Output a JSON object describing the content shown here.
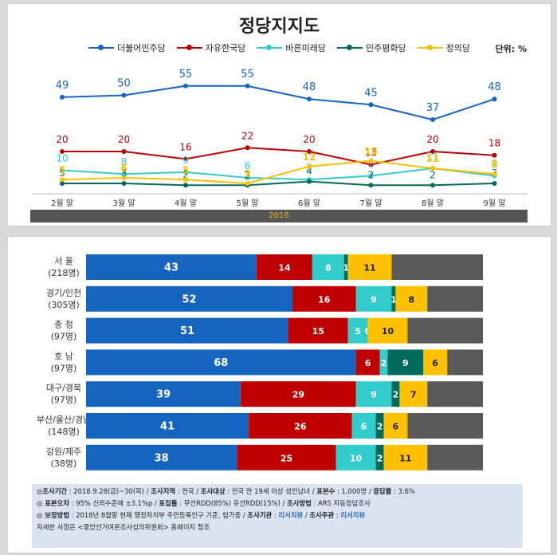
{
  "title": "정당지지도",
  "unit": "단위: %",
  "year_label": "2018",
  "colors": {
    "minju": "#1565c0",
    "jayu": "#c00000",
    "bareun": "#33cccc",
    "pyeonghwa": "#006b5c",
    "jeongui": "#ffc000",
    "other": "#595959"
  },
  "chart_data": [
    {
      "type": "line",
      "title": "정당지지도",
      "x": [
        "2월 말",
        "3월 말",
        "4월 말",
        "5월 말",
        "6월 말",
        "7월 말",
        "8월 말",
        "9월 말"
      ],
      "ylim": [
        0,
        60
      ],
      "legend_position": "top",
      "series": [
        {
          "name": "더불어민주당",
          "color": "#1565c0",
          "values": [
            49,
            50,
            55,
            55,
            48,
            45,
            37,
            48
          ]
        },
        {
          "name": "자유한국당",
          "color": "#c00000",
          "values": [
            20,
            20,
            16,
            22,
            20,
            13,
            20,
            18
          ]
        },
        {
          "name": "바른미래당",
          "color": "#33cccc",
          "values": [
            10,
            8,
            9,
            6,
            5,
            7,
            11,
            7
          ]
        },
        {
          "name": "민주평화당",
          "color": "#006b5c",
          "values": [
            3,
            3,
            2,
            2,
            4,
            2,
            2,
            3
          ]
        },
        {
          "name": "정의당",
          "color": "#ffc000",
          "values": [
            5,
            6,
            5,
            3,
            12,
            15,
            11,
            8
          ]
        }
      ]
    },
    {
      "type": "bar",
      "orientation": "horizontal-stacked",
      "xlim": [
        0,
        100
      ],
      "categories": [
        {
          "name": "서 울",
          "n": "(218명)"
        },
        {
          "name": "경기/인천",
          "n": "(305명)"
        },
        {
          "name": "충 청",
          "n": "(97명)"
        },
        {
          "name": "호 남",
          "n": "(97명)"
        },
        {
          "name": "대구/경북",
          "n": "(97명)"
        },
        {
          "name": "부산/울산/경남",
          "n": "(148명)"
        },
        {
          "name": "강원/제주",
          "n": "(38명)"
        }
      ],
      "series": [
        {
          "name": "더불어민주당",
          "color": "#1565c0",
          "values": [
            43,
            52,
            51,
            68,
            39,
            41,
            38
          ]
        },
        {
          "name": "자유한국당",
          "color": "#c00000",
          "values": [
            14,
            16,
            15,
            6,
            29,
            26,
            25
          ]
        },
        {
          "name": "바른미래당",
          "color": "#33cccc",
          "values": [
            8,
            9,
            5,
            2,
            9,
            6,
            10
          ]
        },
        {
          "name": "민주평화당",
          "color": "#006b5c",
          "values": [
            1,
            1,
            0,
            9,
            2,
            2,
            2
          ]
        },
        {
          "name": "정의당",
          "color": "#ffc000",
          "values": [
            11,
            8,
            10,
            6,
            7,
            6,
            11
          ]
        }
      ]
    }
  ],
  "notes": {
    "line1": {
      "k1": "◎조사기간",
      "v1": " : 2018.9.28(금)~30(목) / ",
      "k2": "조사지역",
      "v2": " : 전국 / ",
      "k3": "조사대상",
      "v3": " : 전국 만 19세 이상 성인남녀 / ",
      "k4": "표본수",
      "v4": " : 1,000명 / ",
      "k5": "응답률",
      "v5": " : 3.6%"
    },
    "line2": {
      "k1": "◎ 표본오차",
      "v1": " : 95% 신뢰수준에 ±3.1%p / ",
      "k2": "표집틀",
      "v2": " : 무선RDD(85%) 유선RDD(15%) / ",
      "k3": "조사방법",
      "v3": " : ARS 자동응답조사"
    },
    "line3": {
      "k1": "◎ 보정방법",
      "v1": " : 2018년 8월말 현재 행정자치부 주민등록인구 기준, 림가중 / ",
      "k2": "조사기관",
      "v2": " : ",
      "b2": "리서치뷰",
      "v2b": " / ",
      "k3": "조사주관",
      "v3": " : ",
      "b3": "리서치뷰"
    },
    "line4": "자세한 사항은 <중앙선거여론조사심의위원회> 홈페이지 참조"
  }
}
